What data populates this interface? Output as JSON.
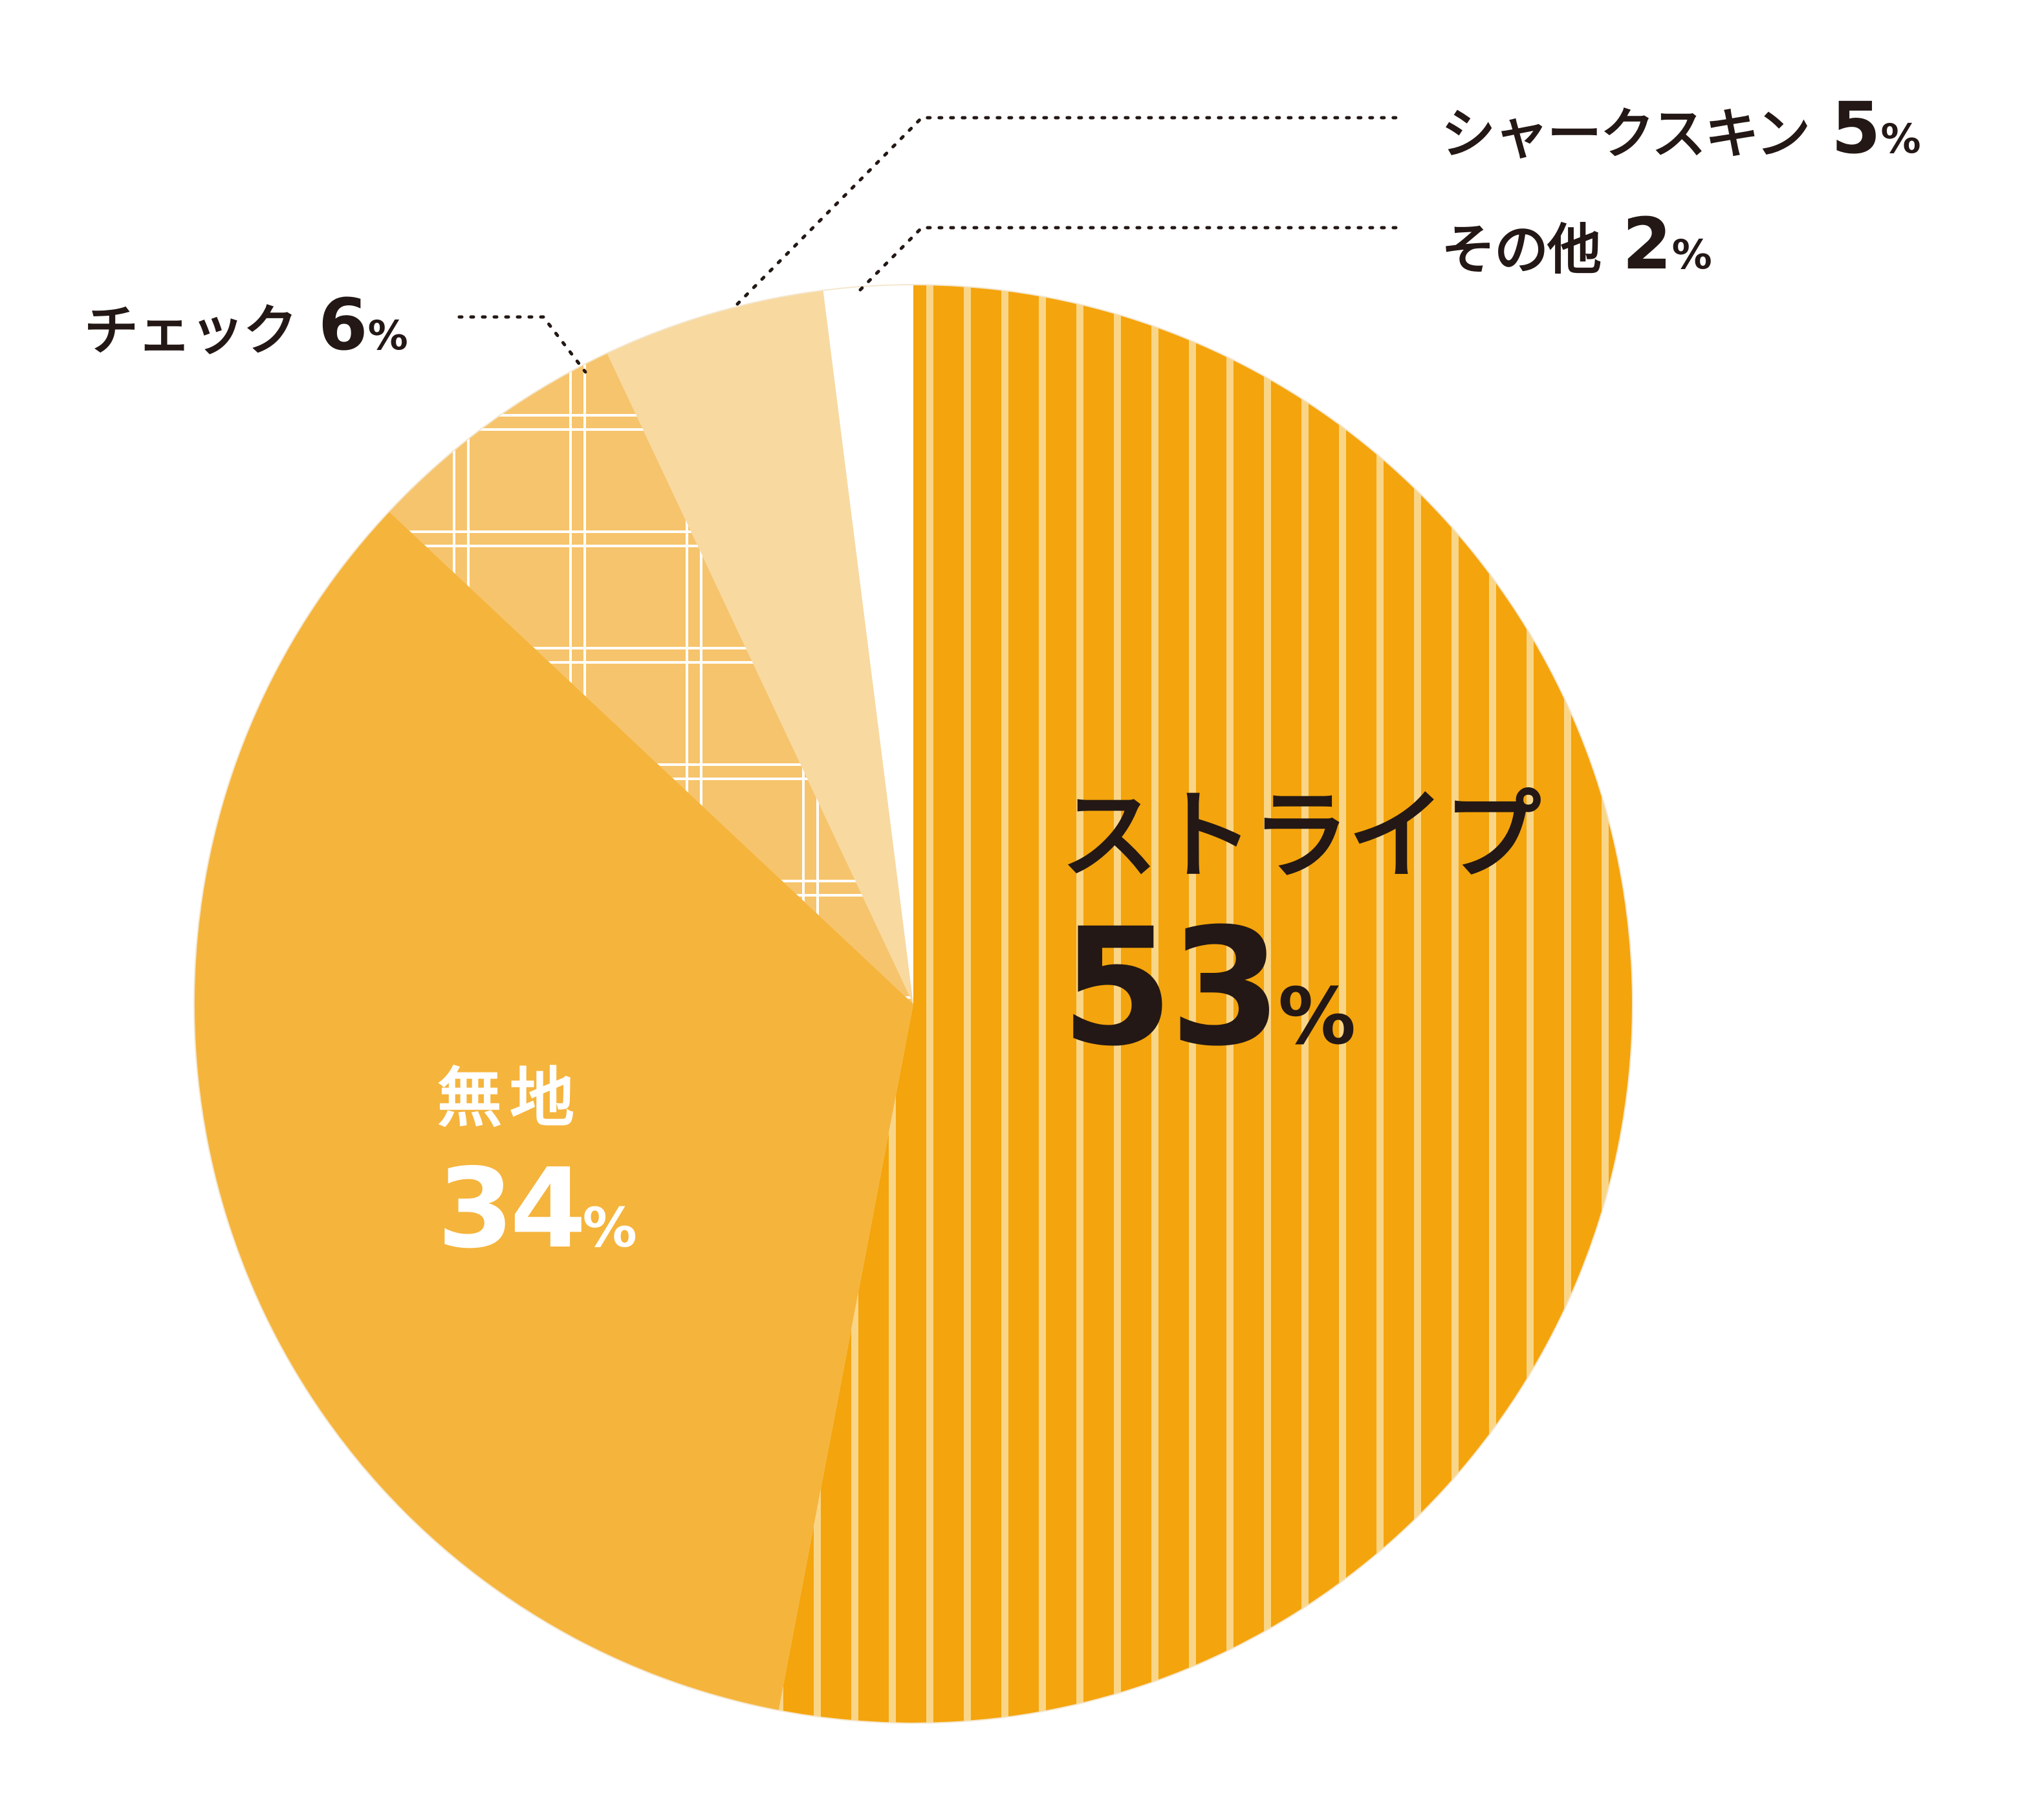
{
  "chart_data": {
    "type": "pie",
    "title": "",
    "start": "12 o'clock",
    "direction": "clockwise",
    "slices": [
      {
        "label": "ストライプ",
        "value": 53,
        "unit": "%",
        "color": "#f4a40c",
        "pattern": "vertical-stripes",
        "label_color": "#231815"
      },
      {
        "label": "無地",
        "value": 34,
        "unit": "%",
        "color": "#f5b43c",
        "pattern": "none",
        "label_color": "#ffffff"
      },
      {
        "label": "チェック",
        "value": 6,
        "unit": "%",
        "color": "#f6c46c",
        "pattern": "check",
        "label_color": "#231815"
      },
      {
        "label": "シャークスキン",
        "value": 5,
        "unit": "%",
        "color": "#f8d9a0",
        "pattern": "none",
        "label_color": "#231815"
      },
      {
        "label": "その他",
        "value": 2,
        "unit": "%",
        "color": "#ffffff",
        "pattern": "none",
        "label_color": "#231815"
      }
    ]
  },
  "labels": {
    "stripe": {
      "name": "ストライプ",
      "value": "53",
      "unit": "%"
    },
    "muji": {
      "name": "無地",
      "value": "34",
      "unit": "%"
    },
    "check": {
      "name": "チェック",
      "value": "6",
      "unit": "%"
    },
    "sharkskin": {
      "name": "シャークスキン",
      "value": "5",
      "unit": "%"
    },
    "other": {
      "name": "その他",
      "value": "2",
      "unit": "%"
    }
  }
}
